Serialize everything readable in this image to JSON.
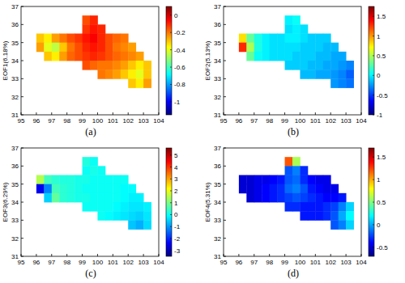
{
  "chart_data": [
    {
      "type": "heatmap",
      "title": "(a)",
      "y_label": "EOF1(6.18%)",
      "x": [
        96.25,
        96.75,
        97.25,
        97.75,
        98.25,
        98.75,
        99.25,
        99.75,
        100.25,
        100.75,
        101.25,
        101.75,
        102.25,
        102.75,
        103.25
      ],
      "y": [
        36.25,
        35.75,
        35.25,
        34.75,
        34.25,
        33.75,
        33.25,
        32.75
      ],
      "cells": [
        [
          null,
          null,
          null,
          null,
          null,
          null,
          -0.15,
          -0.1,
          null,
          null,
          null,
          null,
          null,
          null,
          null
        ],
        [
          null,
          null,
          null,
          null,
          null,
          null,
          -0.12,
          -0.08,
          -0.1,
          null,
          null,
          null,
          null,
          null,
          null
        ],
        [
          -0.3,
          -0.35,
          -0.25,
          -0.2,
          -0.15,
          -0.12,
          -0.08,
          -0.05,
          -0.1,
          -0.15,
          -0.18,
          -0.2,
          null,
          null,
          null
        ],
        [
          -0.25,
          -0.4,
          -0.45,
          -0.3,
          -0.2,
          -0.15,
          -0.1,
          -0.08,
          -0.1,
          -0.15,
          -0.2,
          -0.22,
          -0.25,
          null,
          null
        ],
        [
          null,
          -0.3,
          -0.35,
          -0.25,
          -0.18,
          -0.15,
          -0.12,
          -0.1,
          -0.12,
          -0.15,
          -0.18,
          -0.2,
          -0.22,
          -0.25,
          null
        ],
        [
          null,
          null,
          null,
          null,
          null,
          null,
          -0.15,
          -0.18,
          -0.2,
          -0.2,
          -0.22,
          -0.25,
          -0.3,
          -0.35,
          -0.3
        ],
        [
          null,
          null,
          null,
          null,
          null,
          null,
          null,
          null,
          -0.2,
          -0.22,
          -0.25,
          -0.3,
          -0.35,
          -0.4,
          -0.3
        ],
        [
          null,
          null,
          null,
          null,
          null,
          null,
          null,
          null,
          null,
          null,
          null,
          null,
          -0.3,
          -0.35,
          -0.25
        ]
      ],
      "xlim": [
        95,
        104
      ],
      "xticks": [
        95,
        96,
        97,
        98,
        99,
        100,
        101,
        102,
        103,
        104
      ],
      "ylim": [
        31,
        37
      ],
      "yticks": [
        31,
        32,
        33,
        34,
        35,
        36,
        37
      ],
      "colorbar_range": [
        -1.15,
        0.1
      ],
      "colorbar_ticks": [
        0,
        -0.2,
        -0.4,
        -0.6,
        -0.8,
        -1
      ]
    },
    {
      "type": "heatmap",
      "title": "(b)",
      "y_label": "EOF2(5.13%)",
      "x": [
        96.25,
        96.75,
        97.25,
        97.75,
        98.25,
        98.75,
        99.25,
        99.75,
        100.25,
        100.75,
        101.25,
        101.75,
        102.25,
        102.75,
        103.25
      ],
      "y": [
        36.25,
        35.75,
        35.25,
        34.75,
        34.25,
        33.75,
        33.25,
        32.75
      ],
      "cells": [
        [
          null,
          null,
          null,
          null,
          null,
          null,
          0.0,
          0.05,
          null,
          null,
          null,
          null,
          null,
          null,
          null
        ],
        [
          null,
          null,
          null,
          null,
          null,
          null,
          -0.05,
          0.0,
          -0.05,
          null,
          null,
          null,
          null,
          null,
          null
        ],
        [
          0.8,
          0.3,
          0.1,
          0.0,
          -0.05,
          -0.05,
          0.0,
          0.0,
          -0.05,
          -0.1,
          -0.1,
          -0.1,
          null,
          null,
          null
        ],
        [
          1.3,
          0.5,
          0.1,
          0.0,
          -0.05,
          -0.05,
          -0.05,
          -0.05,
          -0.1,
          -0.1,
          -0.1,
          -0.15,
          -0.15,
          null,
          null
        ],
        [
          null,
          0.3,
          0.05,
          0.0,
          -0.05,
          -0.05,
          -0.05,
          -0.1,
          -0.1,
          -0.1,
          -0.15,
          -0.15,
          -0.2,
          -0.2,
          null
        ],
        [
          null,
          null,
          null,
          null,
          null,
          null,
          -0.1,
          -0.1,
          -0.1,
          -0.15,
          -0.15,
          -0.2,
          -0.2,
          -0.25,
          -0.3
        ],
        [
          null,
          null,
          null,
          null,
          null,
          null,
          null,
          null,
          -0.15,
          -0.15,
          -0.2,
          -0.2,
          -0.25,
          -0.3,
          -0.4
        ],
        [
          null,
          null,
          null,
          null,
          null,
          null,
          null,
          null,
          null,
          null,
          null,
          null,
          -0.25,
          -0.3,
          -0.35
        ]
      ],
      "xlim": [
        95,
        104
      ],
      "xticks": [
        95,
        96,
        97,
        98,
        99,
        100,
        101,
        102,
        103,
        104
      ],
      "ylim": [
        31,
        37
      ],
      "yticks": [
        31,
        32,
        33,
        34,
        35,
        36,
        37
      ],
      "colorbar_range": [
        -1,
        1.75
      ],
      "colorbar_ticks": [
        -1,
        -0.5,
        0,
        0.5,
        1,
        1.5
      ]
    },
    {
      "type": "heatmap",
      "title": "(c)",
      "y_label": "EOF3(6.29%)",
      "x": [
        96.25,
        96.75,
        97.25,
        97.75,
        98.25,
        98.75,
        99.25,
        99.75,
        100.25,
        100.75,
        101.25,
        101.75,
        102.25,
        102.75,
        103.25
      ],
      "y": [
        36.25,
        35.75,
        35.25,
        34.75,
        34.25,
        33.75,
        33.25,
        32.75
      ],
      "cells": [
        [
          null,
          null,
          null,
          null,
          null,
          null,
          0.2,
          0.0,
          null,
          null,
          null,
          null,
          null,
          null,
          null
        ],
        [
          null,
          null,
          null,
          null,
          null,
          null,
          0.0,
          0.1,
          0.0,
          null,
          null,
          null,
          null,
          null,
          null
        ],
        [
          1.5,
          0.5,
          0.3,
          0.2,
          0.2,
          0.1,
          0.1,
          0.0,
          0.0,
          0.0,
          0.0,
          0.0,
          null,
          null,
          null
        ],
        [
          -2.5,
          -1.2,
          0.5,
          0.3,
          0.2,
          0.1,
          0.0,
          0.0,
          0.0,
          0.0,
          0.0,
          -0.1,
          -0.1,
          null,
          null
        ],
        [
          null,
          -0.5,
          0.8,
          0.3,
          0.2,
          0.1,
          0.1,
          0.0,
          0.0,
          0.0,
          0.0,
          -0.1,
          -0.2,
          -0.2,
          null
        ],
        [
          null,
          null,
          null,
          null,
          null,
          null,
          0.0,
          0.0,
          0.0,
          0.0,
          -0.1,
          -0.2,
          -0.3,
          -0.3,
          -0.2
        ],
        [
          null,
          null,
          null,
          null,
          null,
          null,
          null,
          null,
          0.0,
          -0.1,
          -0.2,
          -0.3,
          -0.4,
          -0.5,
          -0.3
        ],
        [
          null,
          null,
          null,
          null,
          null,
          null,
          null,
          null,
          null,
          null,
          null,
          null,
          -0.6,
          -0.8,
          -0.4
        ]
      ],
      "xlim": [
        95,
        104
      ],
      "xticks": [
        95,
        96,
        97,
        98,
        99,
        100,
        101,
        102,
        103,
        104
      ],
      "ylim": [
        31,
        37
      ],
      "yticks": [
        31,
        32,
        33,
        34,
        35,
        36,
        37
      ],
      "colorbar_range": [
        -3.5,
        5.6
      ],
      "colorbar_ticks": [
        -3,
        -2,
        -1,
        0,
        1,
        2,
        3,
        4,
        5
      ]
    },
    {
      "type": "heatmap",
      "title": "(d)",
      "y_label": "EOF4(5.31%)",
      "x": [
        96.25,
        96.75,
        97.25,
        97.75,
        98.25,
        98.75,
        99.25,
        99.75,
        100.25,
        100.75,
        101.25,
        101.75,
        102.25,
        102.75,
        103.25
      ],
      "y": [
        36.25,
        35.75,
        35.25,
        34.75,
        34.25,
        33.75,
        33.25,
        32.75
      ],
      "cells": [
        [
          null,
          null,
          null,
          null,
          null,
          null,
          1.2,
          0.6,
          null,
          null,
          null,
          null,
          null,
          null,
          null
        ],
        [
          null,
          null,
          null,
          null,
          null,
          null,
          -0.2,
          -0.1,
          -0.3,
          null,
          null,
          null,
          null,
          null,
          null
        ],
        [
          -0.5,
          -0.5,
          -0.45,
          -0.45,
          -0.4,
          -0.35,
          -0.2,
          -0.15,
          -0.3,
          -0.4,
          -0.45,
          -0.45,
          null,
          null,
          null
        ],
        [
          -0.5,
          -0.5,
          -0.45,
          -0.4,
          -0.35,
          -0.3,
          -0.15,
          -0.1,
          -0.2,
          -0.35,
          -0.4,
          -0.45,
          -0.45,
          null,
          null
        ],
        [
          null,
          -0.5,
          -0.45,
          -0.4,
          -0.35,
          -0.3,
          -0.25,
          -0.2,
          -0.25,
          -0.3,
          -0.35,
          -0.4,
          -0.4,
          -0.35,
          null
        ],
        [
          null,
          null,
          null,
          null,
          null,
          null,
          -0.3,
          -0.3,
          -0.35,
          -0.35,
          -0.35,
          -0.3,
          -0.25,
          -0.1,
          0.1
        ],
        [
          null,
          null,
          null,
          null,
          null,
          null,
          null,
          null,
          -0.35,
          -0.35,
          -0.35,
          -0.3,
          -0.2,
          0.0,
          0.2
        ],
        [
          null,
          null,
          null,
          null,
          null,
          null,
          null,
          null,
          null,
          null,
          null,
          null,
          -0.2,
          -0.1,
          0.1
        ]
      ],
      "xlim": [
        95,
        104
      ],
      "xticks": [
        95,
        96,
        97,
        98,
        99,
        100,
        101,
        102,
        103,
        104
      ],
      "ylim": [
        31,
        37
      ],
      "yticks": [
        31,
        32,
        33,
        34,
        35,
        36,
        37
      ],
      "colorbar_range": [
        -0.7,
        1.7
      ],
      "colorbar_ticks": [
        -0.5,
        0,
        0.5,
        1,
        1.5
      ]
    }
  ]
}
